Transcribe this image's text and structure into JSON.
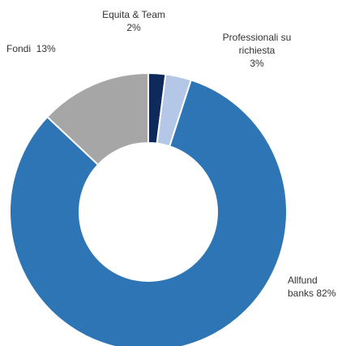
{
  "chart_data": {
    "type": "donut",
    "categories": [
      "Equita & Team",
      "Professionali su richiesta",
      "Allfund banks",
      "Fondi"
    ],
    "values": [
      2,
      3,
      82,
      13
    ],
    "value_labels": [
      "2%",
      "3%",
      "82%",
      "13%"
    ],
    "colors": [
      "#0e2a5a",
      "#b4c7e7",
      "#2e75b6",
      "#a6a6a6"
    ]
  }
}
